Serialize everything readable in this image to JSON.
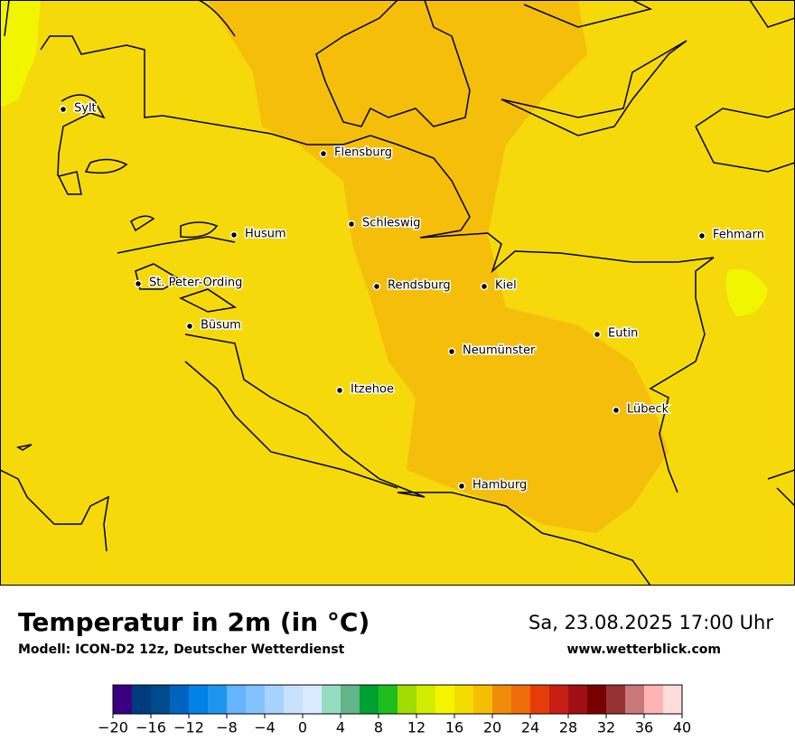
{
  "map": {
    "cities": [
      "Sylt",
      "Flensburg",
      "Schleswig",
      "Husum",
      "St. Peter-Ording",
      "Rendsburg",
      "Kiel",
      "Büsum",
      "Neumünster",
      "Eutin",
      "Itzehoe",
      "Lübeck",
      "Hamburg",
      "Fehmarn"
    ]
  },
  "header": {
    "title": "Temperatur in 2m (in °C)",
    "subtitle": "Modell: ICON-D2 12z, Deutscher Wetterdienst",
    "datetime": "Sa, 23.08.2025 17:00 Uhr",
    "website": "www.wetterblick.com"
  },
  "colorbar": {
    "lim": [
      -20,
      40
    ],
    "ticks": [
      {
        "value": -20,
        "label": "−20"
      },
      {
        "value": -16,
        "label": "−16"
      },
      {
        "value": -12,
        "label": "−12"
      },
      {
        "value": -8,
        "label": "−8"
      },
      {
        "value": -4,
        "label": "−4"
      },
      0,
      4,
      8,
      12,
      16,
      20,
      24,
      28,
      32,
      36,
      40
    ],
    "colors": [
      "#3a0082",
      "#003c7d",
      "#004a8e",
      "#0064be",
      "#0082e6",
      "#1e96f0",
      "#64b4ff",
      "#82c3ff",
      "#a5d2ff",
      "#c8e1ff",
      "#d9eaff",
      "#96dcbe",
      "#64b48c",
      "#00a032",
      "#1ebe1e",
      "#a0dc00",
      "#d2ec00",
      "#f5f500",
      "#f5dc00",
      "#f5be00",
      "#f08c0a",
      "#f06e0a",
      "#e63c0a",
      "#c81e14",
      "#a00f14",
      "#780000",
      "#963232",
      "#c87878",
      "#ffb4b4",
      "#ffdcdc"
    ]
  }
}
